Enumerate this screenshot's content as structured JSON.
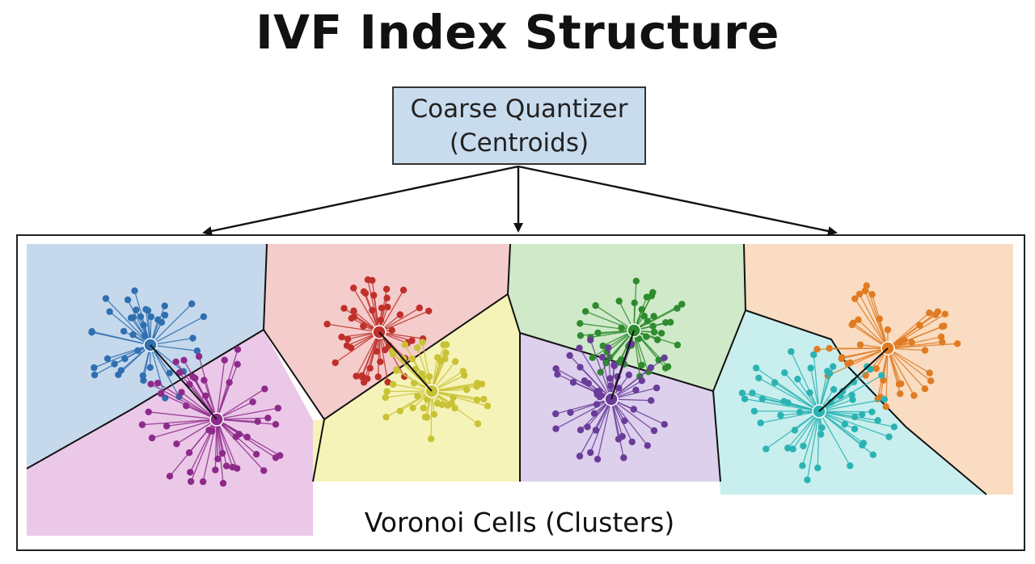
{
  "title": "IVF Index Structure",
  "quantizer": {
    "line1": "Coarse Quantizer",
    "line2": "(Centroids)",
    "fill": "#c9dcee"
  },
  "cells_label": "Voronoi Cells (Clusters)",
  "clusters": [
    {
      "name": "blue",
      "color": "#2f6fb0",
      "region_fill": "#c6d9ec",
      "points": 40
    },
    {
      "name": "magenta",
      "color": "#8e2a8a",
      "region_fill": "#ebc8e8",
      "points": 50
    },
    {
      "name": "red",
      "color": "#c0302b",
      "region_fill": "#f4cccb",
      "points": 45
    },
    {
      "name": "yellow",
      "color": "#c9c235",
      "region_fill": "#f6f3b9",
      "points": 50
    },
    {
      "name": "green",
      "color": "#2e8b2e",
      "region_fill": "#cfe9c9",
      "points": 45
    },
    {
      "name": "purple",
      "color": "#6a3c9a",
      "region_fill": "#dcd0ec",
      "points": 50
    },
    {
      "name": "orange",
      "color": "#e07b22",
      "region_fill": "#f9dcc1",
      "points": 45
    },
    {
      "name": "teal",
      "color": "#2bb3b3",
      "region_fill": "#c9eeee",
      "points": 55
    }
  ]
}
